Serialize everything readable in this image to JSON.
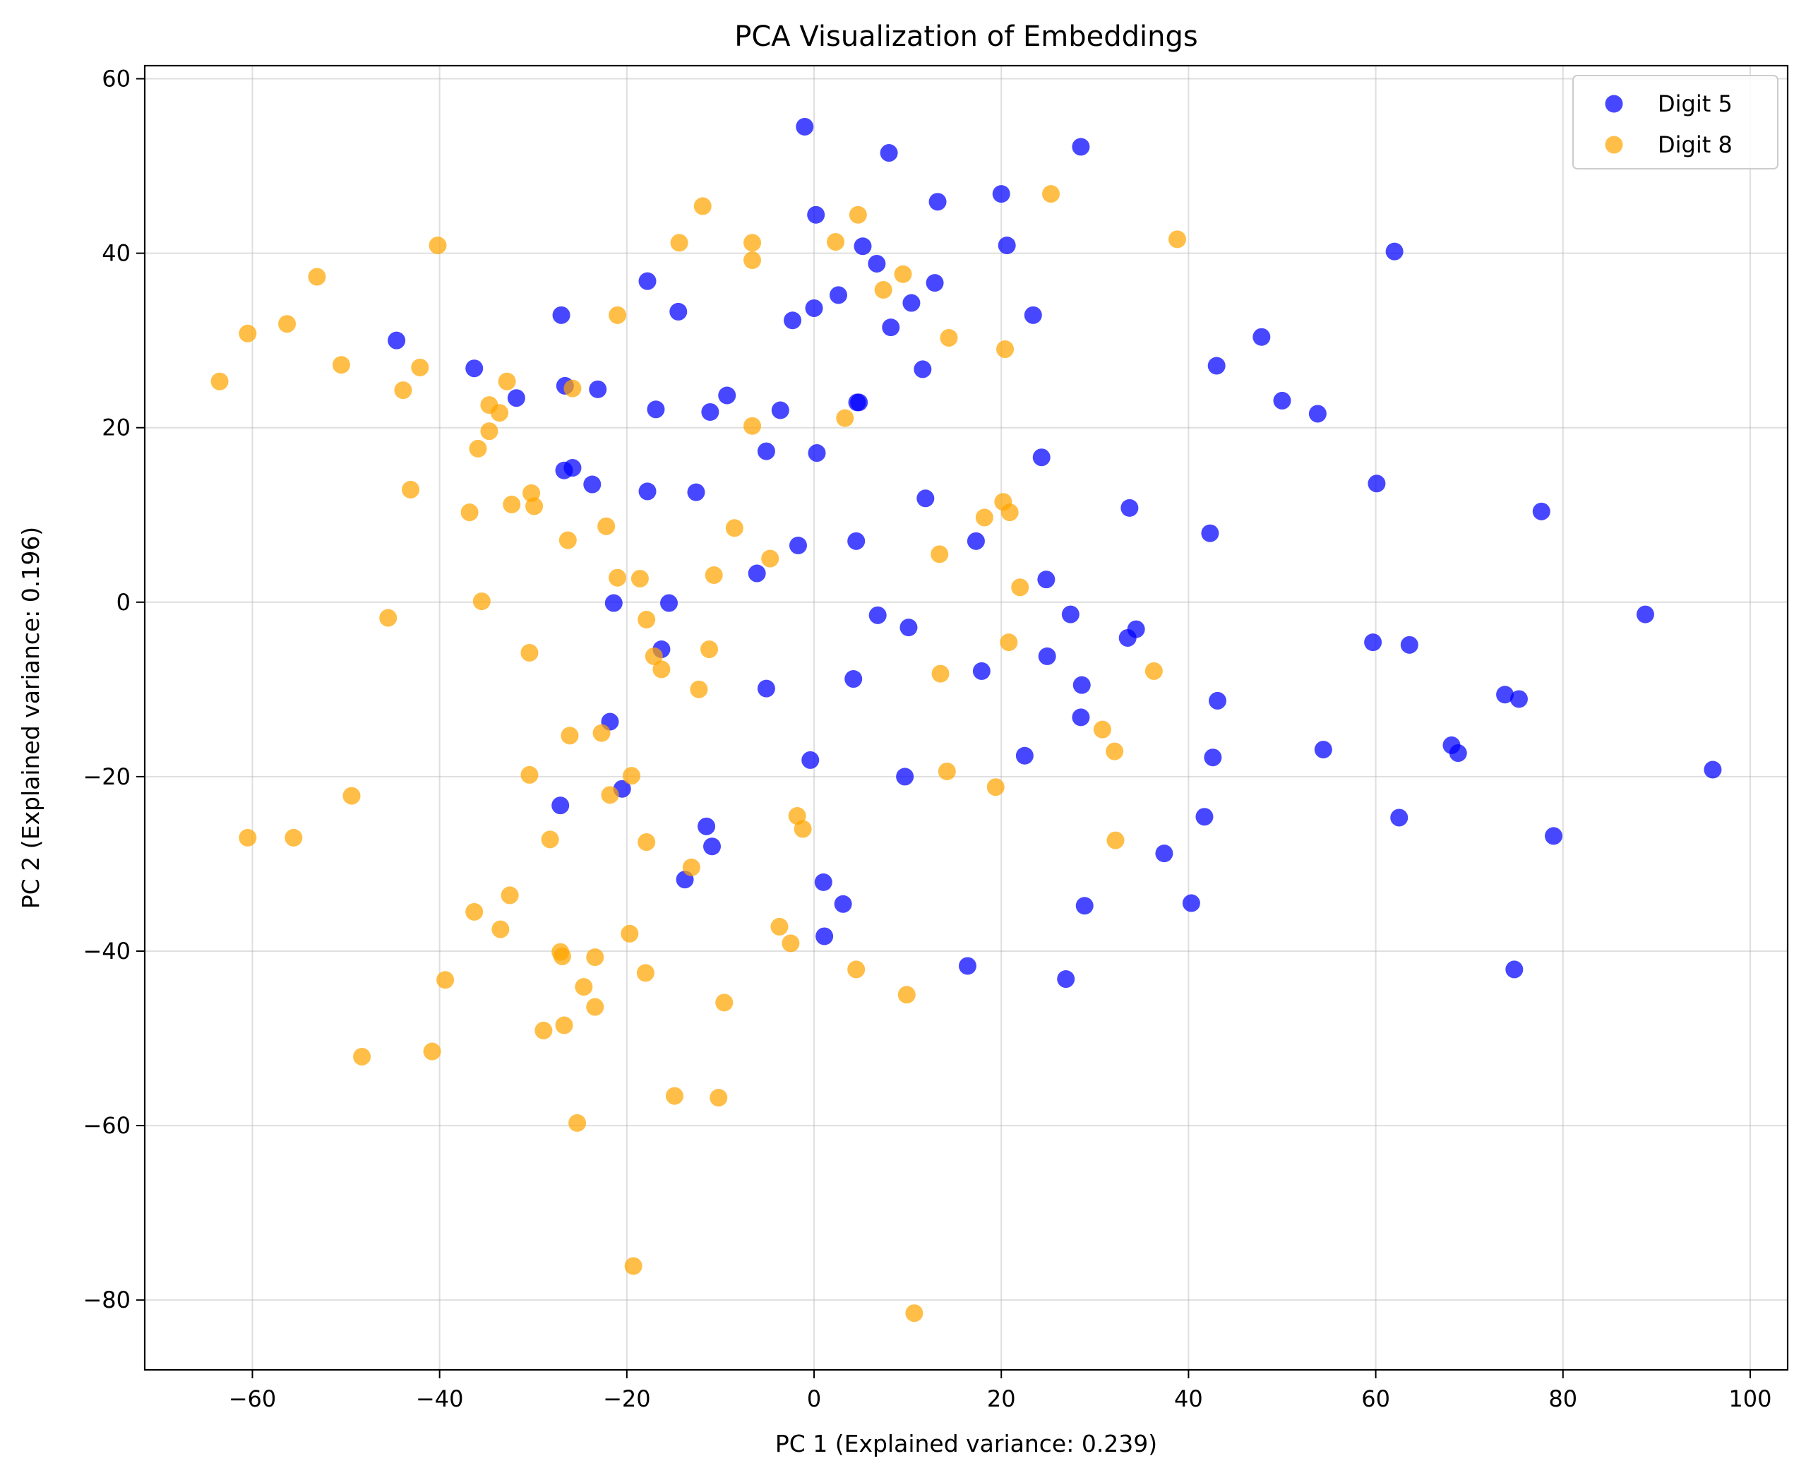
{
  "chart_data": {
    "type": "scatter",
    "title": "PCA Visualization of Embeddings",
    "xlabel": "PC 1 (Explained variance: 0.239)",
    "ylabel": "PC 2 (Explained variance: 0.196)",
    "xlim": [
      -71.5,
      104
    ],
    "ylim": [
      -88,
      61.5
    ],
    "xticks": [
      -60,
      -40,
      -20,
      0,
      20,
      40,
      60,
      80,
      100
    ],
    "yticks": [
      60,
      40,
      20,
      0,
      -20,
      -40,
      -60,
      -80
    ],
    "grid": true,
    "legend_position": "top-right",
    "series": [
      {
        "name": "Digit 5",
        "color": "#0000ff",
        "points": [
          [
            -1,
            54.5
          ],
          [
            28.5,
            52.2
          ],
          [
            8,
            51.5
          ],
          [
            20,
            46.8
          ],
          [
            13.2,
            45.9
          ],
          [
            0.2,
            44.4
          ],
          [
            20.6,
            40.9
          ],
          [
            5.2,
            40.8
          ],
          [
            62,
            40.2
          ],
          [
            6.7,
            38.8
          ],
          [
            -17.8,
            36.8
          ],
          [
            12.9,
            36.6
          ],
          [
            2.6,
            35.2
          ],
          [
            10.4,
            34.3
          ],
          [
            0,
            33.7
          ],
          [
            -14.5,
            33.3
          ],
          [
            -27,
            32.9
          ],
          [
            23.4,
            32.9
          ],
          [
            -2.3,
            32.3
          ],
          [
            8.2,
            31.5
          ],
          [
            47.8,
            30.4
          ],
          [
            -44.6,
            30
          ],
          [
            -36.3,
            26.8
          ],
          [
            43,
            27.1
          ],
          [
            11.6,
            26.7
          ],
          [
            -26.6,
            24.8
          ],
          [
            -23.1,
            24.4
          ],
          [
            -31.8,
            23.4
          ],
          [
            50,
            23.1
          ],
          [
            -9.3,
            23.7
          ],
          [
            4.6,
            22.9
          ],
          [
            4.8,
            22.9
          ],
          [
            -16.9,
            22.1
          ],
          [
            -11.1,
            21.8
          ],
          [
            -3.6,
            22
          ],
          [
            53.8,
            21.6
          ],
          [
            -5.1,
            17.3
          ],
          [
            0.3,
            17.1
          ],
          [
            24.3,
            16.6
          ],
          [
            -25.8,
            15.4
          ],
          [
            -26.7,
            15.1
          ],
          [
            -23.7,
            13.5
          ],
          [
            60.1,
            13.6
          ],
          [
            -17.8,
            12.7
          ],
          [
            -12.6,
            12.6
          ],
          [
            11.9,
            11.9
          ],
          [
            33.7,
            10.8
          ],
          [
            77.7,
            10.4
          ],
          [
            42.3,
            7.9
          ],
          [
            4.5,
            7
          ],
          [
            -1.7,
            6.5
          ],
          [
            17.3,
            7
          ],
          [
            -6.1,
            3.3
          ],
          [
            24.8,
            2.6
          ],
          [
            -21.4,
            -0.1
          ],
          [
            -15.5,
            -0.1
          ],
          [
            6.8,
            -1.5
          ],
          [
            27.4,
            -1.4
          ],
          [
            88.8,
            -1.4
          ],
          [
            10.1,
            -2.9
          ],
          [
            34.4,
            -3.1
          ],
          [
            33.5,
            -4.1
          ],
          [
            59.7,
            -4.6
          ],
          [
            63.6,
            -4.9
          ],
          [
            -16.3,
            -5.4
          ],
          [
            24.9,
            -6.2
          ],
          [
            17.9,
            -7.9
          ],
          [
            4.2,
            -8.8
          ],
          [
            28.6,
            -9.5
          ],
          [
            -5.1,
            -9.9
          ],
          [
            73.8,
            -10.6
          ],
          [
            75.3,
            -11.1
          ],
          [
            43.1,
            -11.3
          ],
          [
            28.5,
            -13.2
          ],
          [
            -21.8,
            -13.7
          ],
          [
            54.4,
            -16.9
          ],
          [
            68.1,
            -16.4
          ],
          [
            68.8,
            -17.3
          ],
          [
            22.5,
            -17.6
          ],
          [
            42.6,
            -17.8
          ],
          [
            -0.4,
            -18.1
          ],
          [
            9.7,
            -20
          ],
          [
            96,
            -19.2
          ],
          [
            -20.5,
            -21.4
          ],
          [
            -27.1,
            -23.3
          ],
          [
            -11.5,
            -25.7
          ],
          [
            41.7,
            -24.6
          ],
          [
            62.5,
            -24.7
          ],
          [
            79,
            -26.8
          ],
          [
            -10.9,
            -28
          ],
          [
            37.4,
            -28.8
          ],
          [
            -13.8,
            -31.8
          ],
          [
            1,
            -32.1
          ],
          [
            3.1,
            -34.6
          ],
          [
            28.9,
            -34.8
          ],
          [
            40.3,
            -34.5
          ],
          [
            1.1,
            -38.3
          ],
          [
            16.4,
            -41.7
          ],
          [
            74.8,
            -42.1
          ],
          [
            26.9,
            -43.2
          ]
        ]
      },
      {
        "name": "Digit 8",
        "color": "#ffa500",
        "points": [
          [
            25.3,
            46.8
          ],
          [
            -11.9,
            45.4
          ],
          [
            4.7,
            44.4
          ],
          [
            -14.4,
            41.2
          ],
          [
            -6.6,
            41.2
          ],
          [
            2.3,
            41.3
          ],
          [
            38.8,
            41.6
          ],
          [
            -40.2,
            40.9
          ],
          [
            -6.6,
            39.2
          ],
          [
            9.5,
            37.6
          ],
          [
            -53.1,
            37.3
          ],
          [
            7.4,
            35.8
          ],
          [
            -21,
            32.9
          ],
          [
            -56.3,
            31.9
          ],
          [
            -60.5,
            30.8
          ],
          [
            14.4,
            30.3
          ],
          [
            20.4,
            29
          ],
          [
            -50.5,
            27.2
          ],
          [
            -42.1,
            26.9
          ],
          [
            -63.5,
            25.3
          ],
          [
            -32.8,
            25.3
          ],
          [
            -25.8,
            24.5
          ],
          [
            -43.9,
            24.3
          ],
          [
            -34.7,
            22.6
          ],
          [
            -33.6,
            21.7
          ],
          [
            3.3,
            21.1
          ],
          [
            -6.6,
            20.2
          ],
          [
            -34.7,
            19.6
          ],
          [
            -35.9,
            17.6
          ],
          [
            -30.2,
            12.5
          ],
          [
            -43.1,
            12.9
          ],
          [
            20.2,
            11.5
          ],
          [
            -32.3,
            11.2
          ],
          [
            -29.9,
            11
          ],
          [
            -36.8,
            10.3
          ],
          [
            20.9,
            10.3
          ],
          [
            18.2,
            9.7
          ],
          [
            -8.5,
            8.5
          ],
          [
            -22.2,
            8.7
          ],
          [
            -26.3,
            7.1
          ],
          [
            13.4,
            5.5
          ],
          [
            -4.7,
            5
          ],
          [
            -10.7,
            3.1
          ],
          [
            -21,
            2.8
          ],
          [
            -18.6,
            2.7
          ],
          [
            22,
            1.7
          ],
          [
            -35.5,
            0.1
          ],
          [
            -45.5,
            -1.8
          ],
          [
            -17.9,
            -2
          ],
          [
            -11.2,
            -5.4
          ],
          [
            -30.4,
            -5.8
          ],
          [
            -17.1,
            -6.2
          ],
          [
            20.8,
            -4.6
          ],
          [
            -16.3,
            -7.7
          ],
          [
            36.3,
            -7.9
          ],
          [
            13.5,
            -8.2
          ],
          [
            -12.3,
            -10
          ],
          [
            30.8,
            -14.6
          ],
          [
            -26.1,
            -15.3
          ],
          [
            -22.7,
            -15
          ],
          [
            32.1,
            -17.1
          ],
          [
            14.2,
            -19.4
          ],
          [
            -30.4,
            -19.8
          ],
          [
            -19.5,
            -19.9
          ],
          [
            19.4,
            -21.2
          ],
          [
            -49.4,
            -22.2
          ],
          [
            -21.8,
            -22.1
          ],
          [
            -1.8,
            -24.5
          ],
          [
            -60.5,
            -27
          ],
          [
            -55.6,
            -27
          ],
          [
            -28.2,
            -27.2
          ],
          [
            -17.9,
            -27.5
          ],
          [
            32.2,
            -27.3
          ],
          [
            -1.2,
            -26
          ],
          [
            -13.1,
            -30.4
          ],
          [
            -32.5,
            -33.6
          ],
          [
            -36.3,
            -35.5
          ],
          [
            -33.5,
            -37.5
          ],
          [
            -3.7,
            -37.2
          ],
          [
            -19.7,
            -38
          ],
          [
            -2.5,
            -39.1
          ],
          [
            -27.1,
            -40.1
          ],
          [
            -26.9,
            -40.6
          ],
          [
            -23.4,
            -40.7
          ],
          [
            -18,
            -42.5
          ],
          [
            4.5,
            -42.1
          ],
          [
            -39.4,
            -43.3
          ],
          [
            -24.6,
            -44.1
          ],
          [
            9.9,
            -45
          ],
          [
            -9.6,
            -45.9
          ],
          [
            -23.4,
            -46.4
          ],
          [
            -26.7,
            -48.5
          ],
          [
            -28.9,
            -49.1
          ],
          [
            -48.3,
            -52.1
          ],
          [
            -40.8,
            -51.5
          ],
          [
            -14.9,
            -56.6
          ],
          [
            -10.2,
            -56.8
          ],
          [
            -25.3,
            -59.7
          ],
          [
            -19.3,
            -76.1
          ],
          [
            10.7,
            -81.5
          ]
        ]
      }
    ]
  }
}
